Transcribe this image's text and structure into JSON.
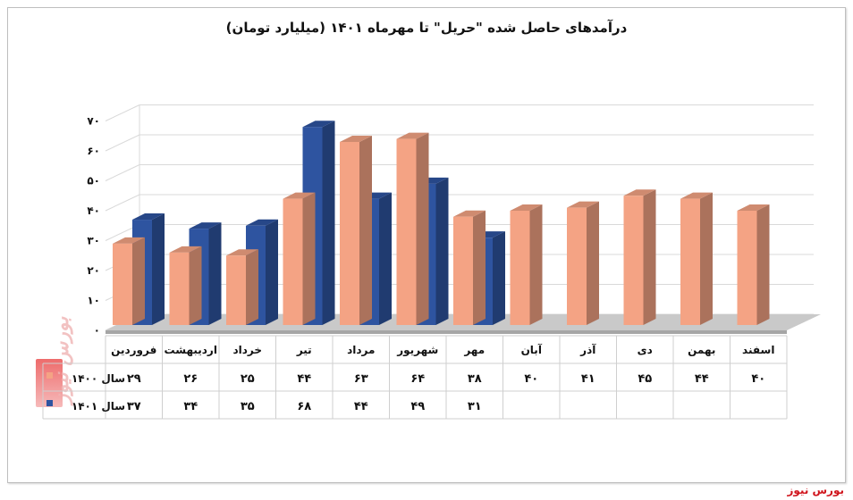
{
  "chart_data": {
    "type": "bar",
    "title": "درآمدهای حاصل شده \"حریل\" تا مهرماه ۱۴۰۱ (میلیارد تومان)",
    "categories": [
      "فروردین",
      "اردیبهشت",
      "خرداد",
      "تیر",
      "مرداد",
      "شهریور",
      "مهر",
      "آبان",
      "آذر",
      "دی",
      "بهمن",
      "اسفند"
    ],
    "series": [
      {
        "name": "سال ۱۴۰۰",
        "color": "#f4a384",
        "values": [
          29,
          26,
          25,
          44,
          63,
          64,
          38,
          40,
          41,
          45,
          44,
          40
        ],
        "labels": [
          "۲۹",
          "۲۶",
          "۲۵",
          "۴۴",
          "۶۳",
          "۶۴",
          "۳۸",
          "۴۰",
          "۴۱",
          "۴۵",
          "۴۴",
          "۴۰"
        ]
      },
      {
        "name": "سال ۱۴۰۱",
        "color": "#2e54a0",
        "values": [
          37,
          34,
          35,
          68,
          44,
          49,
          31,
          null,
          null,
          null,
          null,
          null
        ],
        "labels": [
          "۳۷",
          "۳۴",
          "۳۵",
          "۶۸",
          "۴۴",
          "۴۹",
          "۳۱",
          "",
          "",
          "",
          "",
          ""
        ]
      }
    ],
    "ylim": [
      0,
      70
    ],
    "yticks": [
      0,
      10,
      20,
      30,
      40,
      50,
      60,
      70
    ],
    "ytick_labels": [
      "۰",
      "۱۰",
      "۲۰",
      "۳۰",
      "۴۰",
      "۵۰",
      "۶۰",
      "۷۰"
    ],
    "grid": true,
    "legend": "data-table-below"
  },
  "source": "بورس نیوز",
  "watermark": "بورس نیوز"
}
